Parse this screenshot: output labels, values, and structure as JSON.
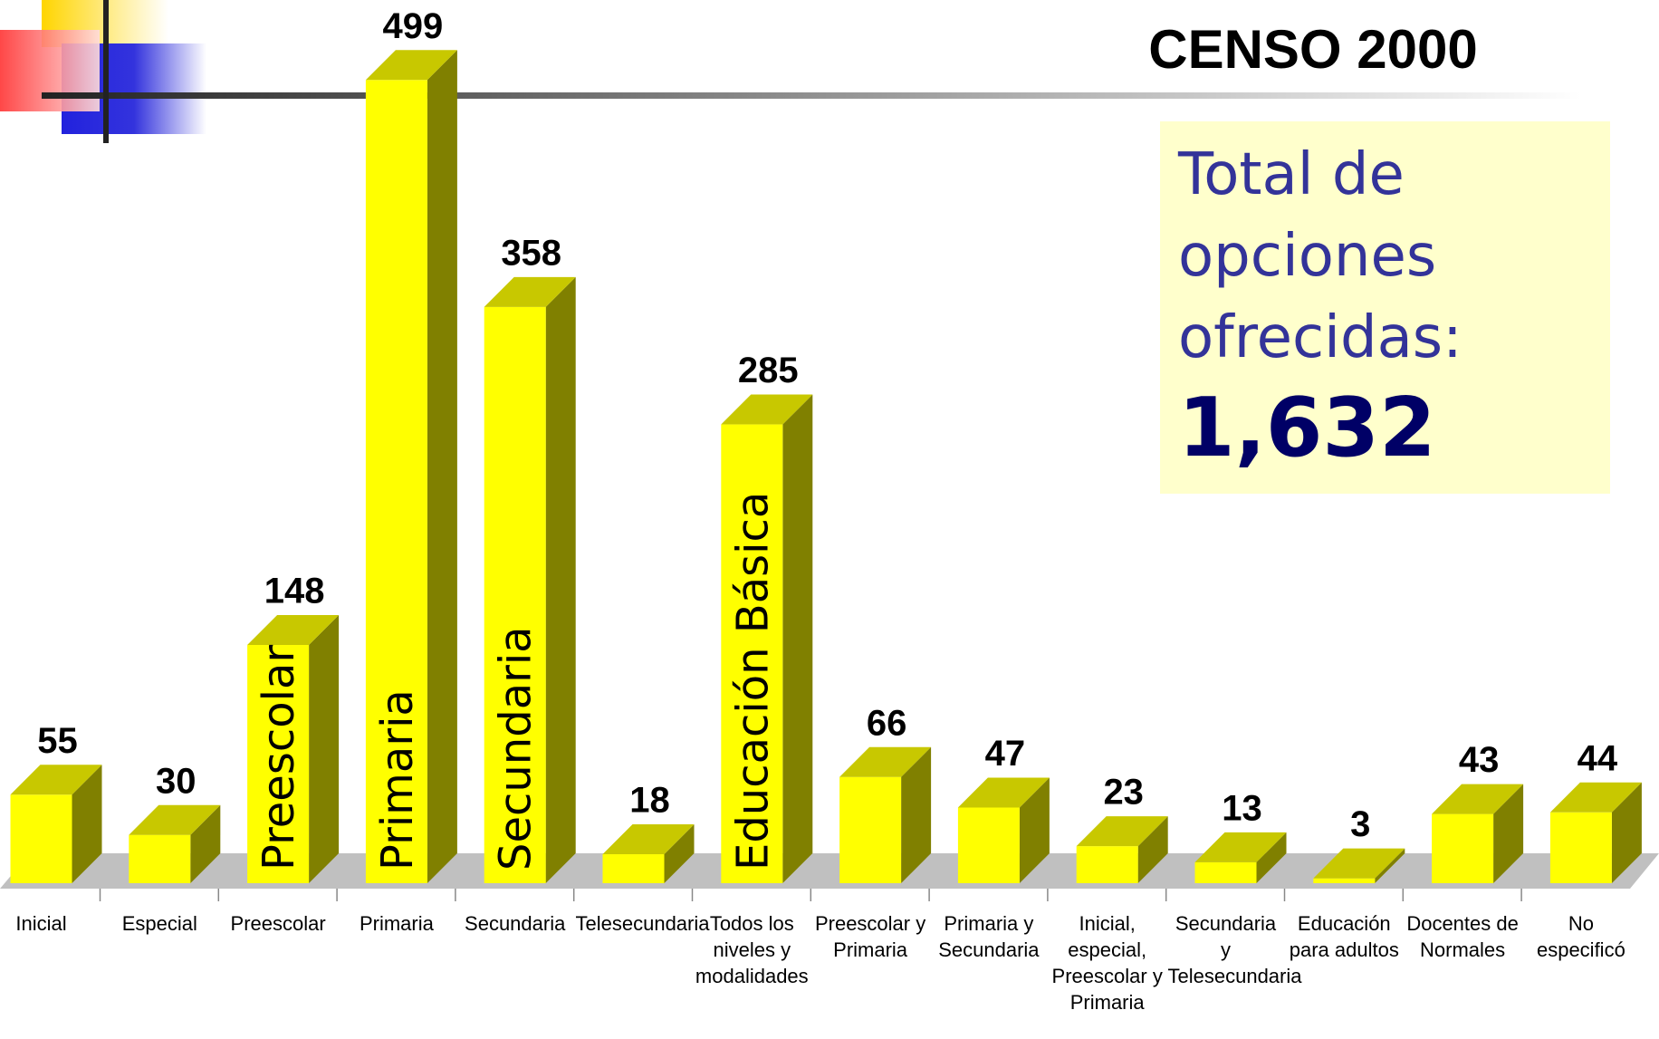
{
  "chart_data": {
    "type": "bar3d",
    "title": "CENSO 2000",
    "categories": [
      "Inicial",
      "Especial",
      "Preescolar",
      "Primaria",
      "Secundaria",
      "Telesecundaria",
      "Todos los niveles y modalidades",
      "Preescolar y Primaria",
      "Primaria y Secundaria",
      "Inicial, especial, Preescolar y Primaria",
      "Secundaria y Telesecundaria",
      "Educación para adultos",
      "Docentes de Normales",
      "No especificó"
    ],
    "values": [
      55,
      30,
      148,
      499,
      358,
      18,
      285,
      66,
      47,
      23,
      13,
      3,
      43,
      44
    ],
    "inner_labels": [
      null,
      null,
      "Preescolar",
      "Primaria",
      "Secundaria",
      null,
      "Educación Básica",
      null,
      null,
      null,
      null,
      null,
      null,
      null
    ],
    "color": "#ffff00",
    "annotation": {
      "text": "Total de opciones ofrecidas:",
      "total": "1,632"
    }
  }
}
